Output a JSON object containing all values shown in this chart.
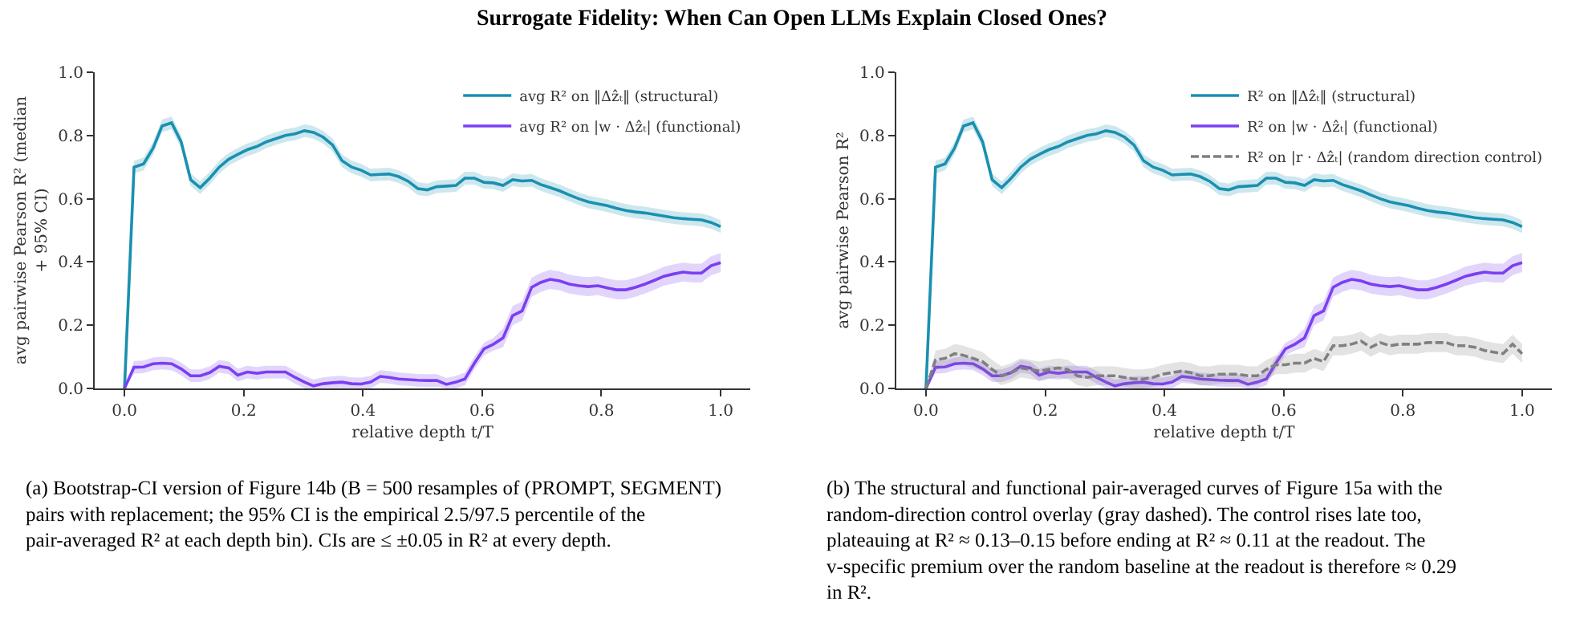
{
  "chart_data": [
    {
      "type": "line",
      "title": "Surrogate Fidelity: When Can Open LLMs Explain Closed Ones?",
      "xlabel": "relative depth t/T",
      "ylabel": "avg pairwise Pearson R² (median + 95% CI)",
      "x": [
        0,
        0.016,
        0.032,
        0.048,
        0.063,
        0.079,
        0.095,
        0.111,
        0.127,
        0.143,
        0.159,
        0.175,
        0.19,
        0.206,
        0.222,
        0.238,
        0.254,
        0.27,
        0.286,
        0.302,
        0.317,
        0.333,
        0.349,
        0.365,
        0.381,
        0.397,
        0.413,
        0.429,
        0.444,
        0.46,
        0.476,
        0.492,
        0.508,
        0.524,
        0.54,
        0.556,
        0.571,
        0.587,
        0.603,
        0.619,
        0.635,
        0.651,
        0.667,
        0.683,
        0.698,
        0.714,
        0.73,
        0.746,
        0.762,
        0.778,
        0.794,
        0.81,
        0.825,
        0.841,
        0.857,
        0.873,
        0.889,
        0.905,
        0.921,
        0.937,
        0.952,
        0.968,
        0.984,
        1.0
      ],
      "xlim": [
        -0.05,
        1.05
      ],
      "ylim": [
        0,
        1
      ],
      "xticks": [
        {
          "value": 0,
          "label": "0.0"
        },
        {
          "value": 0.2,
          "label": "0.2"
        },
        {
          "value": 0.4,
          "label": "0.4"
        },
        {
          "value": 0.6,
          "label": "0.6"
        },
        {
          "value": 0.8,
          "label": "0.8"
        },
        {
          "value": 1,
          "label": "1.0"
        }
      ],
      "yticks": [
        {
          "value": 0,
          "label": "0.0"
        },
        {
          "value": 0.2,
          "label": "0.2"
        },
        {
          "value": 0.4,
          "label": "0.4"
        },
        {
          "value": 0.6,
          "label": "0.6"
        },
        {
          "value": 0.8,
          "label": "0.8"
        },
        {
          "value": 1,
          "label": "1.0"
        }
      ],
      "legend": "top right",
      "grid": false,
      "marker": "none",
      "series": [
        {
          "name": "avg R² on ‖Δẑₜ‖ (structural)",
          "color": "#1a90b0",
          "line_style": "solid",
          "values": [
            0,
            0.7,
            0.71,
            0.76,
            0.83,
            0.84,
            0.78,
            0.66,
            0.635,
            0.665,
            0.7,
            0.725,
            0.74,
            0.755,
            0.765,
            0.78,
            0.79,
            0.8,
            0.805,
            0.815,
            0.81,
            0.795,
            0.77,
            0.72,
            0.7,
            0.69,
            0.675,
            0.677,
            0.678,
            0.67,
            0.655,
            0.632,
            0.628,
            0.638,
            0.64,
            0.642,
            0.665,
            0.665,
            0.652,
            0.65,
            0.642,
            0.66,
            0.656,
            0.658,
            0.645,
            0.635,
            0.625,
            0.612,
            0.6,
            0.59,
            0.584,
            0.578,
            0.57,
            0.563,
            0.558,
            0.555,
            0.55,
            0.545,
            0.54,
            0.537,
            0.535,
            0.533,
            0.525,
            0.512
          ],
          "lower": [
            0,
            0.68,
            0.69,
            0.74,
            0.81,
            0.82,
            0.76,
            0.64,
            0.615,
            0.645,
            0.68,
            0.705,
            0.72,
            0.735,
            0.745,
            0.76,
            0.77,
            0.78,
            0.785,
            0.795,
            0.79,
            0.775,
            0.75,
            0.7,
            0.68,
            0.67,
            0.655,
            0.657,
            0.658,
            0.65,
            0.635,
            0.612,
            0.608,
            0.618,
            0.62,
            0.622,
            0.645,
            0.645,
            0.632,
            0.63,
            0.622,
            0.64,
            0.636,
            0.638,
            0.625,
            0.615,
            0.605,
            0.592,
            0.58,
            0.57,
            0.564,
            0.558,
            0.55,
            0.543,
            0.538,
            0.535,
            0.53,
            0.525,
            0.52,
            0.517,
            0.515,
            0.513,
            0.505,
            0.492
          ],
          "upper": [
            0,
            0.72,
            0.73,
            0.78,
            0.85,
            0.86,
            0.8,
            0.68,
            0.655,
            0.685,
            0.72,
            0.745,
            0.76,
            0.775,
            0.785,
            0.8,
            0.81,
            0.82,
            0.825,
            0.835,
            0.83,
            0.815,
            0.79,
            0.74,
            0.72,
            0.71,
            0.695,
            0.697,
            0.698,
            0.69,
            0.675,
            0.652,
            0.648,
            0.658,
            0.66,
            0.662,
            0.685,
            0.685,
            0.672,
            0.67,
            0.662,
            0.68,
            0.676,
            0.678,
            0.665,
            0.655,
            0.645,
            0.632,
            0.62,
            0.61,
            0.604,
            0.598,
            0.59,
            0.583,
            0.578,
            0.575,
            0.57,
            0.565,
            0.56,
            0.557,
            0.555,
            0.553,
            0.545,
            0.532
          ]
        },
        {
          "name": "avg R² on |w · Δẑₜ| (functional)",
          "color": "#7b3ff2",
          "line_style": "solid",
          "values": [
            0,
            0.067,
            0.068,
            0.078,
            0.08,
            0.078,
            0.062,
            0.04,
            0.04,
            0.05,
            0.07,
            0.065,
            0.042,
            0.052,
            0.048,
            0.052,
            0.052,
            0.052,
            0.035,
            0.02,
            0.008,
            0.015,
            0.018,
            0.02,
            0.015,
            0.014,
            0.02,
            0.038,
            0.035,
            0.03,
            0.028,
            0.026,
            0.025,
            0.025,
            0.013,
            0.02,
            0.03,
            0.08,
            0.125,
            0.14,
            0.16,
            0.23,
            0.245,
            0.32,
            0.335,
            0.345,
            0.34,
            0.33,
            0.325,
            0.322,
            0.325,
            0.318,
            0.312,
            0.312,
            0.32,
            0.33,
            0.342,
            0.355,
            0.362,
            0.368,
            0.365,
            0.365,
            0.388,
            0.398
          ],
          "lower": [
            0,
            0.047,
            0.048,
            0.058,
            0.06,
            0.058,
            0.042,
            0.02,
            0.02,
            0.03,
            0.05,
            0.045,
            0.022,
            0.032,
            0.028,
            0.032,
            0.032,
            0.032,
            0.015,
            0,
            0,
            0,
            0,
            0,
            0,
            0,
            0,
            0.018,
            0.015,
            0.01,
            0.008,
            0.006,
            0.005,
            0.005,
            0,
            0,
            0.01,
            0.06,
            0.105,
            0.12,
            0.13,
            0.2,
            0.215,
            0.29,
            0.305,
            0.315,
            0.31,
            0.3,
            0.295,
            0.292,
            0.295,
            0.288,
            0.282,
            0.282,
            0.29,
            0.3,
            0.312,
            0.325,
            0.332,
            0.338,
            0.335,
            0.335,
            0.358,
            0.368
          ],
          "upper": [
            0,
            0.087,
            0.088,
            0.098,
            0.1,
            0.098,
            0.082,
            0.06,
            0.06,
            0.07,
            0.09,
            0.085,
            0.062,
            0.072,
            0.068,
            0.072,
            0.072,
            0.072,
            0.055,
            0.04,
            0.028,
            0.035,
            0.038,
            0.04,
            0.035,
            0.034,
            0.04,
            0.058,
            0.055,
            0.05,
            0.048,
            0.046,
            0.045,
            0.045,
            0.033,
            0.04,
            0.05,
            0.1,
            0.145,
            0.16,
            0.19,
            0.26,
            0.275,
            0.35,
            0.365,
            0.375,
            0.37,
            0.36,
            0.355,
            0.352,
            0.355,
            0.348,
            0.342,
            0.342,
            0.35,
            0.36,
            0.372,
            0.385,
            0.392,
            0.398,
            0.395,
            0.395,
            0.418,
            0.428
          ]
        }
      ],
      "annotations": [
        "(a) Bootstrap-CI version of Figure 14b (B = 500 resamples of (PROMPT, SEGMENT) pairs with replacement; the 95% CI is the empirical 2.5/97.5 percentile of the pair-averaged R² at each depth bin). CIs are ≤ ±0.05 in R² at every depth."
      ]
    },
    {
      "type": "line",
      "xlabel": "relative depth t/T",
      "ylabel": "avg pairwise Pearson R²",
      "x": [
        0,
        0.016,
        0.032,
        0.048,
        0.063,
        0.079,
        0.095,
        0.111,
        0.127,
        0.143,
        0.159,
        0.175,
        0.19,
        0.206,
        0.222,
        0.238,
        0.254,
        0.27,
        0.286,
        0.302,
        0.317,
        0.333,
        0.349,
        0.365,
        0.381,
        0.397,
        0.413,
        0.429,
        0.444,
        0.46,
        0.476,
        0.492,
        0.508,
        0.524,
        0.54,
        0.556,
        0.571,
        0.587,
        0.603,
        0.619,
        0.635,
        0.651,
        0.667,
        0.683,
        0.698,
        0.714,
        0.73,
        0.746,
        0.762,
        0.778,
        0.794,
        0.81,
        0.825,
        0.841,
        0.857,
        0.873,
        0.889,
        0.905,
        0.921,
        0.937,
        0.952,
        0.968,
        0.984,
        1.0
      ],
      "xlim": [
        -0.05,
        1.05
      ],
      "ylim": [
        0,
        1
      ],
      "xticks": [
        {
          "value": 0,
          "label": "0.0"
        },
        {
          "value": 0.2,
          "label": "0.2"
        },
        {
          "value": 0.4,
          "label": "0.4"
        },
        {
          "value": 0.6,
          "label": "0.6"
        },
        {
          "value": 0.8,
          "label": "0.8"
        },
        {
          "value": 1,
          "label": "1.0"
        }
      ],
      "yticks": [
        {
          "value": 0,
          "label": "0.0"
        },
        {
          "value": 0.2,
          "label": "0.2"
        },
        {
          "value": 0.4,
          "label": "0.4"
        },
        {
          "value": 0.6,
          "label": "0.6"
        },
        {
          "value": 0.8,
          "label": "0.8"
        },
        {
          "value": 1,
          "label": "1.0"
        }
      ],
      "legend": "top right",
      "grid": false,
      "marker": "none",
      "series": [
        {
          "name": "R² on ‖Δẑₜ‖ (structural)",
          "color": "#1a90b0",
          "line_style": "solid",
          "values": [
            0,
            0.7,
            0.71,
            0.76,
            0.83,
            0.84,
            0.78,
            0.66,
            0.635,
            0.665,
            0.7,
            0.725,
            0.74,
            0.755,
            0.765,
            0.78,
            0.79,
            0.8,
            0.805,
            0.815,
            0.81,
            0.795,
            0.77,
            0.72,
            0.7,
            0.69,
            0.675,
            0.677,
            0.678,
            0.67,
            0.655,
            0.632,
            0.628,
            0.638,
            0.64,
            0.642,
            0.665,
            0.665,
            0.652,
            0.65,
            0.642,
            0.66,
            0.656,
            0.658,
            0.645,
            0.635,
            0.625,
            0.612,
            0.6,
            0.59,
            0.584,
            0.578,
            0.57,
            0.563,
            0.558,
            0.555,
            0.55,
            0.545,
            0.54,
            0.537,
            0.535,
            0.533,
            0.525,
            0.512
          ],
          "lower": [
            0,
            0.68,
            0.69,
            0.74,
            0.81,
            0.82,
            0.76,
            0.64,
            0.615,
            0.645,
            0.68,
            0.705,
            0.72,
            0.735,
            0.745,
            0.76,
            0.77,
            0.78,
            0.785,
            0.795,
            0.79,
            0.775,
            0.75,
            0.7,
            0.68,
            0.67,
            0.655,
            0.657,
            0.658,
            0.65,
            0.635,
            0.612,
            0.608,
            0.618,
            0.62,
            0.622,
            0.645,
            0.645,
            0.632,
            0.63,
            0.622,
            0.64,
            0.636,
            0.638,
            0.625,
            0.615,
            0.605,
            0.592,
            0.58,
            0.57,
            0.564,
            0.558,
            0.55,
            0.543,
            0.538,
            0.535,
            0.53,
            0.525,
            0.52,
            0.517,
            0.515,
            0.513,
            0.505,
            0.492
          ],
          "upper": [
            0,
            0.72,
            0.73,
            0.78,
            0.85,
            0.86,
            0.8,
            0.68,
            0.655,
            0.685,
            0.72,
            0.745,
            0.76,
            0.775,
            0.785,
            0.8,
            0.81,
            0.82,
            0.825,
            0.835,
            0.83,
            0.815,
            0.79,
            0.74,
            0.72,
            0.71,
            0.695,
            0.697,
            0.698,
            0.69,
            0.675,
            0.652,
            0.648,
            0.658,
            0.66,
            0.662,
            0.685,
            0.685,
            0.672,
            0.67,
            0.662,
            0.68,
            0.676,
            0.678,
            0.665,
            0.655,
            0.645,
            0.632,
            0.62,
            0.61,
            0.604,
            0.598,
            0.59,
            0.583,
            0.578,
            0.575,
            0.57,
            0.565,
            0.56,
            0.557,
            0.555,
            0.553,
            0.545,
            0.532
          ]
        },
        {
          "name": "R² on |w · Δẑₜ| (functional)",
          "color": "#7b3ff2",
          "line_style": "solid",
          "values": [
            0,
            0.067,
            0.068,
            0.078,
            0.08,
            0.078,
            0.062,
            0.04,
            0.04,
            0.05,
            0.07,
            0.065,
            0.042,
            0.052,
            0.048,
            0.052,
            0.052,
            0.052,
            0.035,
            0.02,
            0.008,
            0.015,
            0.018,
            0.02,
            0.015,
            0.014,
            0.02,
            0.038,
            0.035,
            0.03,
            0.028,
            0.026,
            0.025,
            0.025,
            0.013,
            0.02,
            0.03,
            0.08,
            0.125,
            0.14,
            0.16,
            0.23,
            0.245,
            0.32,
            0.335,
            0.345,
            0.34,
            0.33,
            0.325,
            0.322,
            0.325,
            0.318,
            0.312,
            0.312,
            0.32,
            0.33,
            0.342,
            0.355,
            0.362,
            0.368,
            0.365,
            0.365,
            0.388,
            0.398
          ],
          "lower": [
            0,
            0.047,
            0.048,
            0.058,
            0.06,
            0.058,
            0.042,
            0.02,
            0.02,
            0.03,
            0.05,
            0.045,
            0.022,
            0.032,
            0.028,
            0.032,
            0.032,
            0.032,
            0.015,
            0,
            0,
            0,
            0,
            0,
            0,
            0,
            0,
            0.018,
            0.015,
            0.01,
            0.008,
            0.006,
            0.005,
            0.005,
            0,
            0,
            0.01,
            0.06,
            0.105,
            0.12,
            0.13,
            0.2,
            0.215,
            0.29,
            0.305,
            0.315,
            0.31,
            0.3,
            0.295,
            0.292,
            0.295,
            0.288,
            0.282,
            0.282,
            0.29,
            0.3,
            0.312,
            0.325,
            0.332,
            0.338,
            0.335,
            0.335,
            0.358,
            0.368
          ],
          "upper": [
            0,
            0.087,
            0.088,
            0.098,
            0.1,
            0.098,
            0.082,
            0.06,
            0.06,
            0.07,
            0.09,
            0.085,
            0.062,
            0.072,
            0.068,
            0.072,
            0.072,
            0.072,
            0.055,
            0.04,
            0.028,
            0.035,
            0.038,
            0.04,
            0.035,
            0.034,
            0.04,
            0.058,
            0.055,
            0.05,
            0.048,
            0.046,
            0.045,
            0.045,
            0.033,
            0.04,
            0.05,
            0.1,
            0.145,
            0.16,
            0.19,
            0.26,
            0.275,
            0.35,
            0.365,
            0.375,
            0.37,
            0.36,
            0.355,
            0.352,
            0.355,
            0.348,
            0.342,
            0.342,
            0.35,
            0.36,
            0.372,
            0.385,
            0.392,
            0.398,
            0.395,
            0.395,
            0.418,
            0.428
          ]
        },
        {
          "name": "R² on |r · Δẑₜ| (random direction control)",
          "color": "#808080",
          "line_style": "dashed",
          "values": [
            0,
            0.09,
            0.095,
            0.11,
            0.105,
            0.095,
            0.085,
            0.06,
            0.04,
            0.05,
            0.065,
            0.06,
            0.055,
            0.06,
            0.065,
            0.06,
            0.04,
            0.035,
            0.04,
            0.04,
            0.04,
            0.035,
            0.03,
            0.03,
            0.035,
            0.045,
            0.05,
            0.055,
            0.05,
            0.04,
            0.04,
            0.045,
            0.045,
            0.045,
            0.04,
            0.04,
            0.06,
            0.075,
            0.075,
            0.08,
            0.08,
            0.095,
            0.085,
            0.135,
            0.135,
            0.14,
            0.15,
            0.13,
            0.145,
            0.135,
            0.14,
            0.14,
            0.14,
            0.145,
            0.145,
            0.145,
            0.135,
            0.135,
            0.13,
            0.12,
            0.115,
            0.11,
            0.14,
            0.11
          ],
          "lower": [
            0,
            0.06,
            0.065,
            0.08,
            0.075,
            0.065,
            0.055,
            0.03,
            0.01,
            0.02,
            0.035,
            0.03,
            0.025,
            0.03,
            0.035,
            0.03,
            0.01,
            0.005,
            0.01,
            0.01,
            0.01,
            0.005,
            0,
            0,
            0.005,
            0.015,
            0.02,
            0.025,
            0.02,
            0.01,
            0.01,
            0.015,
            0.015,
            0.015,
            0.01,
            0.01,
            0.03,
            0.045,
            0.045,
            0.05,
            0.05,
            0.065,
            0.055,
            0.105,
            0.105,
            0.11,
            0.12,
            0.1,
            0.115,
            0.105,
            0.11,
            0.11,
            0.11,
            0.115,
            0.115,
            0.115,
            0.105,
            0.105,
            0.1,
            0.09,
            0.085,
            0.08,
            0.11,
            0.08
          ],
          "upper": [
            0,
            0.12,
            0.125,
            0.14,
            0.135,
            0.125,
            0.115,
            0.09,
            0.07,
            0.08,
            0.095,
            0.09,
            0.085,
            0.09,
            0.095,
            0.09,
            0.07,
            0.065,
            0.07,
            0.07,
            0.07,
            0.065,
            0.06,
            0.06,
            0.065,
            0.075,
            0.08,
            0.085,
            0.08,
            0.07,
            0.07,
            0.075,
            0.075,
            0.075,
            0.07,
            0.07,
            0.09,
            0.105,
            0.105,
            0.11,
            0.11,
            0.125,
            0.115,
            0.165,
            0.165,
            0.17,
            0.18,
            0.16,
            0.175,
            0.165,
            0.17,
            0.17,
            0.17,
            0.175,
            0.175,
            0.175,
            0.165,
            0.165,
            0.16,
            0.15,
            0.145,
            0.14,
            0.17,
            0.14
          ]
        }
      ],
      "annotations": [
        "(b) The structural and functional pair-averaged curves of Figure 15a with the random-direction control overlay (gray dashed). The control rises late too, plateauing at R² ≈ 0.13–0.15 before ending at R² ≈ 0.11 at the readout. The v-specific premium over the random baseline at the readout is therefore ≈ 0.29 in R²."
      ]
    }
  ]
}
